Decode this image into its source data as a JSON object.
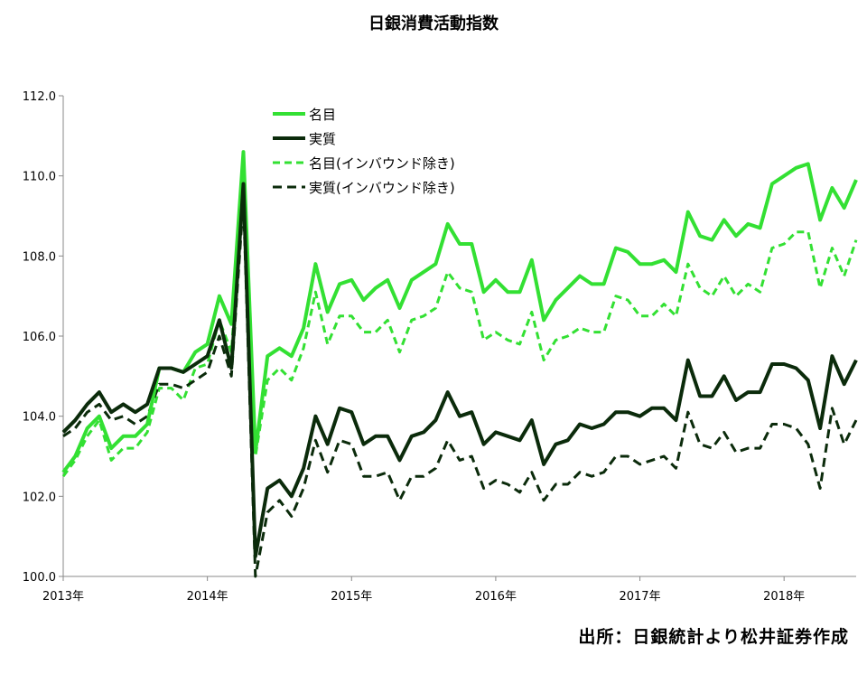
{
  "chart_data": {
    "type": "line",
    "title": "日銀消費活動指数",
    "ylim": [
      100,
      112
    ],
    "yticks": [
      "100.0",
      "102.0",
      "104.0",
      "106.0",
      "108.0",
      "110.0",
      "112.0"
    ],
    "xticks": [
      "2013年",
      "2014年",
      "2015年",
      "2016年",
      "2017年",
      "2018年"
    ],
    "months": [
      "2013-01",
      "2013-02",
      "2013-03",
      "2013-04",
      "2013-05",
      "2013-06",
      "2013-07",
      "2013-08",
      "2013-09",
      "2013-10",
      "2013-11",
      "2013-12",
      "2014-01",
      "2014-02",
      "2014-03",
      "2014-04",
      "2014-05",
      "2014-06",
      "2014-07",
      "2014-08",
      "2014-09",
      "2014-10",
      "2014-11",
      "2014-12",
      "2015-01",
      "2015-02",
      "2015-03",
      "2015-04",
      "2015-05",
      "2015-06",
      "2015-07",
      "2015-08",
      "2015-09",
      "2015-10",
      "2015-11",
      "2015-12",
      "2016-01",
      "2016-02",
      "2016-03",
      "2016-04",
      "2016-05",
      "2016-06",
      "2016-07",
      "2016-08",
      "2016-09",
      "2016-10",
      "2016-11",
      "2016-12",
      "2017-01",
      "2017-02",
      "2017-03",
      "2017-04",
      "2017-05",
      "2017-06",
      "2017-07",
      "2017-08",
      "2017-09",
      "2017-10",
      "2017-11",
      "2017-12",
      "2018-01",
      "2018-02",
      "2018-03",
      "2018-04",
      "2018-05",
      "2018-06",
      "2018-07"
    ],
    "series": [
      {
        "name": "名目",
        "color": "#33e033",
        "style": "solid",
        "values": [
          102.6,
          103.0,
          103.7,
          104.0,
          103.2,
          103.5,
          103.5,
          103.8,
          105.2,
          105.2,
          105.1,
          105.6,
          105.8,
          107.0,
          106.3,
          110.6,
          103.1,
          105.5,
          105.7,
          105.5,
          106.2,
          107.8,
          106.6,
          107.3,
          107.4,
          106.9,
          107.2,
          107.4,
          106.7,
          107.4,
          107.6,
          107.8,
          108.8,
          108.3,
          108.3,
          107.1,
          107.4,
          107.1,
          107.1,
          107.9,
          106.4,
          106.9,
          107.2,
          107.5,
          107.3,
          107.3,
          108.2,
          108.1,
          107.8,
          107.8,
          107.9,
          107.6,
          109.1,
          108.5,
          108.4,
          108.9,
          108.5,
          108.8,
          108.7,
          109.8,
          110.0,
          110.2,
          110.3,
          108.9,
          109.7,
          109.2,
          109.9
        ]
      },
      {
        "name": "実質",
        "color": "#0b2b0b",
        "style": "solid",
        "values": [
          103.6,
          103.9,
          104.3,
          104.6,
          104.1,
          104.3,
          104.1,
          104.3,
          105.2,
          105.2,
          105.1,
          105.3,
          105.5,
          106.4,
          105.2,
          109.8,
          100.5,
          102.2,
          102.4,
          102.0,
          102.7,
          104.0,
          103.3,
          104.2,
          104.1,
          103.3,
          103.5,
          103.5,
          102.9,
          103.5,
          103.6,
          103.9,
          104.6,
          104.0,
          104.1,
          103.3,
          103.6,
          103.5,
          103.4,
          103.9,
          102.8,
          103.3,
          103.4,
          103.8,
          103.7,
          103.8,
          104.1,
          104.1,
          104.0,
          104.2,
          104.2,
          103.9,
          105.4,
          104.5,
          104.5,
          105.0,
          104.4,
          104.6,
          104.6,
          105.3,
          105.3,
          105.2,
          104.9,
          103.7,
          105.5,
          104.8,
          105.4
        ]
      },
      {
        "name": "名目(インバウンド除き)",
        "color": "#33e033",
        "style": "dashed",
        "values": [
          102.5,
          102.9,
          103.5,
          103.9,
          102.9,
          103.2,
          103.2,
          103.6,
          104.7,
          104.7,
          104.4,
          105.2,
          105.3,
          106.4,
          105.6,
          109.9,
          103.0,
          104.9,
          105.2,
          104.9,
          105.7,
          107.1,
          105.8,
          106.5,
          106.5,
          106.1,
          106.1,
          106.4,
          105.6,
          106.4,
          106.5,
          106.7,
          107.6,
          107.2,
          107.1,
          105.9,
          106.1,
          105.9,
          105.8,
          106.6,
          105.4,
          105.9,
          106.0,
          106.2,
          106.1,
          106.1,
          107.0,
          106.9,
          106.5,
          106.5,
          106.8,
          106.5,
          107.8,
          107.2,
          107.0,
          107.5,
          107.0,
          107.3,
          107.1,
          108.2,
          108.3,
          108.6,
          108.6,
          107.2,
          108.2,
          107.5,
          108.4
        ]
      },
      {
        "name": "実質(インバウンド除き)",
        "color": "#0b2b0b",
        "style": "dashed",
        "values": [
          103.5,
          103.7,
          104.1,
          104.3,
          103.9,
          104.0,
          103.8,
          104.0,
          104.8,
          104.8,
          104.7,
          104.9,
          105.1,
          106.0,
          105.0,
          109.4,
          100.0,
          101.6,
          101.9,
          101.5,
          102.2,
          103.4,
          102.6,
          103.4,
          103.3,
          102.5,
          102.5,
          102.6,
          101.9,
          102.5,
          102.5,
          102.7,
          103.4,
          102.9,
          103.0,
          102.2,
          102.4,
          102.3,
          102.1,
          102.6,
          101.9,
          102.3,
          102.3,
          102.6,
          102.5,
          102.6,
          103.0,
          103.0,
          102.8,
          102.9,
          103.0,
          102.7,
          104.1,
          103.3,
          103.2,
          103.6,
          103.1,
          103.2,
          103.2,
          103.8,
          103.8,
          103.7,
          103.3,
          102.2,
          104.2,
          103.3,
          103.9
        ]
      }
    ],
    "legend": "top-left"
  },
  "source": "出所：日銀統計より松井証券作成"
}
